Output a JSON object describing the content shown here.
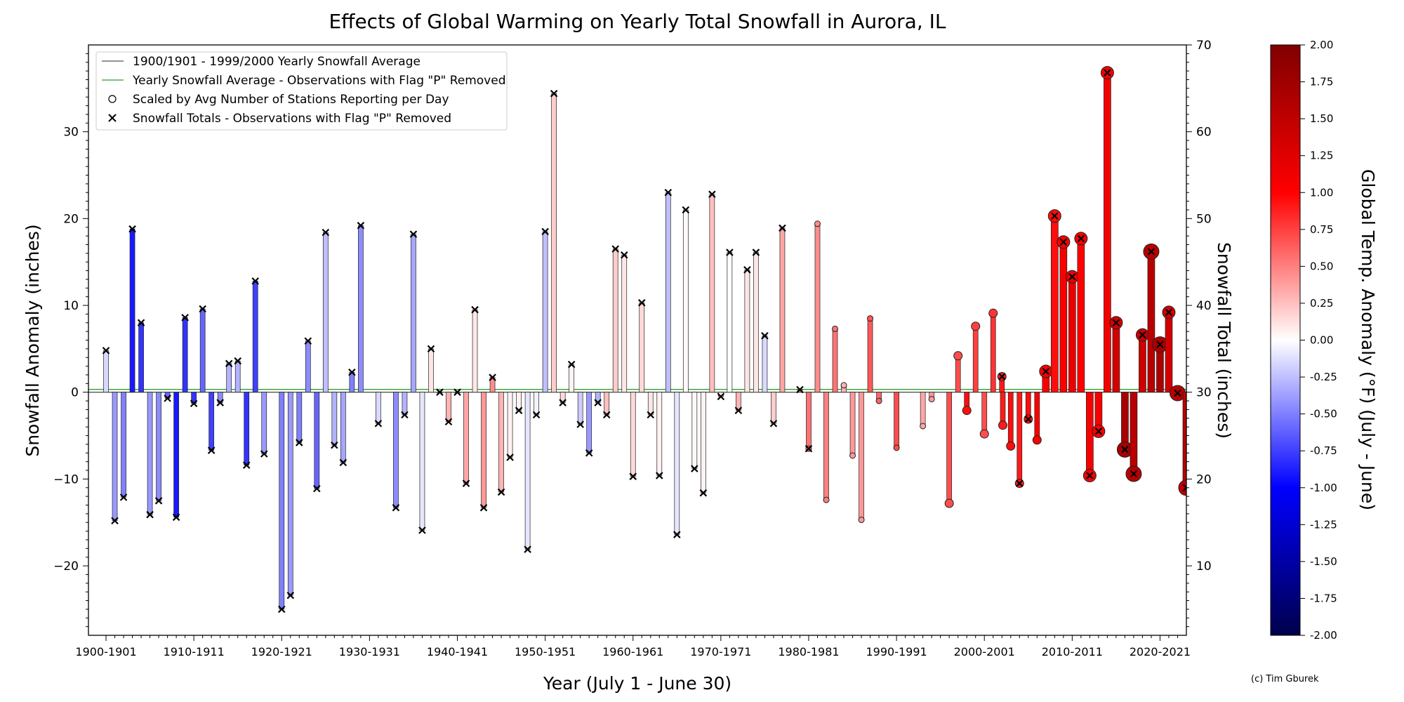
{
  "chart_data": {
    "type": "bar",
    "title": "Effects of Global Warming on Yearly Total Snowfall in Aurora, IL",
    "xlabel": "Year (July 1 - June 30)",
    "ylabel": "Snowfall Anomaly (inches)",
    "ylabel_right": "Snowfall Total (inches)",
    "colorbar_label": "Global Temp. Anomaly (°F) (July - June)",
    "credit": "(c) Tim Gburek",
    "xlim": [
      1898,
      2023
    ],
    "ylim": [
      -28,
      40
    ],
    "ylim_right": [
      2,
      70
    ],
    "baseline_total_inches": 30.0,
    "xticks": [
      {
        "year": 1900,
        "label": "1900-1901"
      },
      {
        "year": 1910,
        "label": "1910-1911"
      },
      {
        "year": 1920,
        "label": "1920-1921"
      },
      {
        "year": 1930,
        "label": "1930-1931"
      },
      {
        "year": 1940,
        "label": "1940-1941"
      },
      {
        "year": 1950,
        "label": "1950-1951"
      },
      {
        "year": 1960,
        "label": "1960-1961"
      },
      {
        "year": 1970,
        "label": "1970-1971"
      },
      {
        "year": 1980,
        "label": "1980-1981"
      },
      {
        "year": 1990,
        "label": "1990-1991"
      },
      {
        "year": 2000,
        "label": "2000-2001"
      },
      {
        "year": 2010,
        "label": "2010-2011"
      },
      {
        "year": 2020,
        "label": "2020-2021"
      }
    ],
    "yticks_left": [
      -20,
      -10,
      0,
      10,
      20,
      30
    ],
    "yticks_right": [
      10,
      20,
      30,
      40,
      50,
      60,
      70
    ],
    "colorbar_ticks": [
      "2.00",
      "1.75",
      "1.50",
      "1.25",
      "1.00",
      "0.75",
      "0.50",
      "0.25",
      "0.00",
      "-0.25",
      "-0.50",
      "-0.75",
      "-1.00",
      "-1.25",
      "-1.50",
      "-1.75",
      "-2.00"
    ],
    "colorbar_range": [
      -2,
      2
    ],
    "legend_placement": "top-left",
    "legend": [
      {
        "label": "1900/1901 - 1999/2000 Yearly Snowfall Average",
        "marker": "line",
        "color": "#555555"
      },
      {
        "label": "Yearly Snowfall Average - Observations with Flag \"P\" Removed",
        "marker": "line",
        "color": "#2ca02c"
      },
      {
        "label": "Scaled by Avg Number of Stations Reporting per Day",
        "marker": "circle",
        "color": "#000000"
      },
      {
        "label": "Snowfall Totals - Observations with Flag \"P\" Removed",
        "marker": "x",
        "color": "#000000"
      }
    ],
    "series": [
      {
        "name": "Snowfall Anomaly",
        "points": [
          {
            "year": 1900,
            "value": 4.8,
            "temp": -0.15,
            "x": true
          },
          {
            "year": 1901,
            "value": -14.8,
            "temp": -0.4,
            "x": true
          },
          {
            "year": 1902,
            "value": -12.1,
            "temp": -0.5,
            "x": true
          },
          {
            "year": 1903,
            "value": 18.8,
            "temp": -0.9,
            "x": true
          },
          {
            "year": 1904,
            "value": 8.0,
            "temp": -0.8,
            "x": true
          },
          {
            "year": 1905,
            "value": -14.1,
            "temp": -0.4,
            "x": true
          },
          {
            "year": 1906,
            "value": -12.5,
            "temp": -0.45,
            "x": true
          },
          {
            "year": 1907,
            "value": -0.7,
            "temp": -0.6,
            "x": true
          },
          {
            "year": 1908,
            "value": -14.4,
            "temp": -0.9,
            "x": true
          },
          {
            "year": 1909,
            "value": 8.6,
            "temp": -0.8,
            "x": true
          },
          {
            "year": 1910,
            "value": -1.3,
            "temp": -0.8,
            "x": true
          },
          {
            "year": 1911,
            "value": 9.6,
            "temp": -0.6,
            "x": true
          },
          {
            "year": 1912,
            "value": -6.7,
            "temp": -0.75,
            "x": true
          },
          {
            "year": 1913,
            "value": -1.2,
            "temp": -0.45,
            "x": true
          },
          {
            "year": 1914,
            "value": 3.3,
            "temp": -0.3,
            "x": true
          },
          {
            "year": 1915,
            "value": 3.6,
            "temp": -0.3,
            "x": true
          },
          {
            "year": 1916,
            "value": -8.4,
            "temp": -0.8,
            "x": true
          },
          {
            "year": 1917,
            "value": 12.8,
            "temp": -0.75,
            "x": true
          },
          {
            "year": 1918,
            "value": -7.1,
            "temp": -0.4,
            "x": true
          },
          {
            "year": 1920,
            "value": -25.0,
            "temp": -0.5,
            "x": true
          },
          {
            "year": 1921,
            "value": -23.4,
            "temp": -0.4,
            "x": true
          },
          {
            "year": 1922,
            "value": -5.8,
            "temp": -0.5,
            "x": true
          },
          {
            "year": 1923,
            "value": 5.9,
            "temp": -0.45,
            "x": true
          },
          {
            "year": 1924,
            "value": -11.1,
            "temp": -0.6,
            "x": true
          },
          {
            "year": 1925,
            "value": 18.4,
            "temp": -0.25,
            "x": true
          },
          {
            "year": 1926,
            "value": -6.1,
            "temp": -0.3,
            "x": true
          },
          {
            "year": 1927,
            "value": -8.1,
            "temp": -0.35,
            "x": true
          },
          {
            "year": 1928,
            "value": 2.3,
            "temp": -0.5,
            "x": true
          },
          {
            "year": 1929,
            "value": 19.2,
            "temp": -0.45,
            "x": true
          },
          {
            "year": 1931,
            "value": -3.6,
            "temp": -0.15,
            "x": true
          },
          {
            "year": 1933,
            "value": -13.3,
            "temp": -0.45,
            "x": true
          },
          {
            "year": 1934,
            "value": -2.6,
            "temp": -0.3,
            "x": true
          },
          {
            "year": 1935,
            "value": 18.2,
            "temp": -0.35,
            "x": true
          },
          {
            "year": 1936,
            "value": -15.9,
            "temp": -0.1,
            "x": true
          },
          {
            "year": 1937,
            "value": 5.0,
            "temp": 0.1,
            "x": true
          },
          {
            "year": 1938,
            "value": 0.0,
            "temp": 0.15,
            "x": true
          },
          {
            "year": 1939,
            "value": -3.4,
            "temp": 0.3,
            "x": true
          },
          {
            "year": 1940,
            "value": 0.0,
            "temp": 0.1,
            "x": true
          },
          {
            "year": 1941,
            "value": -10.5,
            "temp": 0.35,
            "x": true
          },
          {
            "year": 1942,
            "value": 9.5,
            "temp": 0.1,
            "x": true
          },
          {
            "year": 1943,
            "value": -13.3,
            "temp": 0.4,
            "x": true
          },
          {
            "year": 1944,
            "value": 1.7,
            "temp": 0.45,
            "x": true
          },
          {
            "year": 1945,
            "value": -11.5,
            "temp": 0.3,
            "x": true
          },
          {
            "year": 1946,
            "value": -7.5,
            "temp": 0.05,
            "x": true
          },
          {
            "year": 1947,
            "value": -2.1,
            "temp": 0.05,
            "x": true
          },
          {
            "year": 1948,
            "value": -18.1,
            "temp": -0.1,
            "x": true
          },
          {
            "year": 1949,
            "value": -2.6,
            "temp": -0.05,
            "x": true
          },
          {
            "year": 1950,
            "value": 18.5,
            "temp": -0.25,
            "x": true
          },
          {
            "year": 1951,
            "value": 34.4,
            "temp": 0.2,
            "x": true
          },
          {
            "year": 1952,
            "value": -1.2,
            "temp": 0.15,
            "x": true
          },
          {
            "year": 1953,
            "value": 3.2,
            "temp": 0.05,
            "x": true
          },
          {
            "year": 1954,
            "value": -3.7,
            "temp": -0.2,
            "x": true
          },
          {
            "year": 1955,
            "value": -7.0,
            "temp": -0.4,
            "x": true
          },
          {
            "year": 1956,
            "value": -1.2,
            "temp": -0.3,
            "x": true
          },
          {
            "year": 1957,
            "value": -2.6,
            "temp": 0.25,
            "x": true
          },
          {
            "year": 1958,
            "value": 16.5,
            "temp": 0.2,
            "x": true
          },
          {
            "year": 1959,
            "value": 15.8,
            "temp": 0.1,
            "x": true
          },
          {
            "year": 1960,
            "value": -9.7,
            "temp": 0.15,
            "x": true
          },
          {
            "year": 1961,
            "value": 10.3,
            "temp": 0.15,
            "x": true
          },
          {
            "year": 1962,
            "value": -2.6,
            "temp": 0.1,
            "x": true
          },
          {
            "year": 1963,
            "value": -9.6,
            "temp": 0.05,
            "x": true
          },
          {
            "year": 1964,
            "value": 23.0,
            "temp": -0.25,
            "x": true
          },
          {
            "year": 1965,
            "value": -16.4,
            "temp": -0.1,
            "x": true
          },
          {
            "year": 1966,
            "value": 21.0,
            "temp": 0.02,
            "x": true
          },
          {
            "year": 1967,
            "value": -8.8,
            "temp": 0.02,
            "x": true
          },
          {
            "year": 1968,
            "value": -11.6,
            "temp": 0.05,
            "x": true
          },
          {
            "year": 1969,
            "value": 22.8,
            "temp": 0.25,
            "x": true
          },
          {
            "year": 1970,
            "value": -0.5,
            "temp": 0.1,
            "x": true
          },
          {
            "year": 1971,
            "value": 16.1,
            "temp": 0.0,
            "x": true
          },
          {
            "year": 1972,
            "value": -2.1,
            "temp": 0.3,
            "x": true
          },
          {
            "year": 1973,
            "value": 14.1,
            "temp": 0.1,
            "x": true
          },
          {
            "year": 1974,
            "value": 16.1,
            "temp": 0.1,
            "x": true
          },
          {
            "year": 1975,
            "value": 6.5,
            "temp": -0.15,
            "x": true
          },
          {
            "year": 1976,
            "value": -3.6,
            "temp": 0.2,
            "x": true
          },
          {
            "year": 1977,
            "value": 18.9,
            "temp": 0.35,
            "x": true
          },
          {
            "year": 1979,
            "value": 0.3,
            "temp": 0.45,
            "x": true
          },
          {
            "year": 1980,
            "value": -6.5,
            "temp": 0.55,
            "x": true
          },
          {
            "year": 1981,
            "value": 19.4,
            "temp": 0.45,
            "x": false
          },
          {
            "year": 1982,
            "value": -12.4,
            "temp": 0.5,
            "x": false
          },
          {
            "year": 1983,
            "value": 7.3,
            "temp": 0.55,
            "x": false
          },
          {
            "year": 1984,
            "value": 0.8,
            "temp": 0.3,
            "x": false
          },
          {
            "year": 1985,
            "value": -7.3,
            "temp": 0.4,
            "x": false
          },
          {
            "year": 1986,
            "value": -14.7,
            "temp": 0.4,
            "x": false
          },
          {
            "year": 1987,
            "value": 8.5,
            "temp": 0.65,
            "x": false
          },
          {
            "year": 1988,
            "value": -1.0,
            "temp": 0.6,
            "x": false
          },
          {
            "year": 1990,
            "value": -6.4,
            "temp": 0.7,
            "x": false
          },
          {
            "year": 1993,
            "value": -3.9,
            "temp": 0.35,
            "x": false
          },
          {
            "year": 1994,
            "value": -0.8,
            "temp": 0.4,
            "x": false
          },
          {
            "year": 1996,
            "value": -12.8,
            "temp": 0.7,
            "x": false
          },
          {
            "year": 1997,
            "value": 4.2,
            "temp": 0.7,
            "x": false
          },
          {
            "year": 1998,
            "value": -2.1,
            "temp": 0.95,
            "x": false
          },
          {
            "year": 1999,
            "value": 7.6,
            "temp": 0.75,
            "x": false
          },
          {
            "year": 2000,
            "value": -4.8,
            "temp": 0.7,
            "x": false
          },
          {
            "year": 2001,
            "value": 9.1,
            "temp": 0.8,
            "x": false
          },
          {
            "year": 2002,
            "value": 1.8,
            "temp": 0.9,
            "x": true
          },
          {
            "year": 2002.1,
            "value": -3.8,
            "temp": 0.9,
            "x": false
          },
          {
            "year": 2003,
            "value": -6.2,
            "temp": 0.95,
            "x": false
          },
          {
            "year": 2004,
            "value": -10.5,
            "temp": 0.9,
            "x": true
          },
          {
            "year": 2005,
            "value": -3.1,
            "temp": 0.95,
            "x": true
          },
          {
            "year": 2006,
            "value": -5.5,
            "temp": 1.0,
            "x": false
          },
          {
            "year": 2007,
            "value": 2.4,
            "temp": 1.05,
            "x": true
          },
          {
            "year": 2008,
            "value": 20.3,
            "temp": 0.95,
            "x": true
          },
          {
            "year": 2009,
            "value": 17.3,
            "temp": 1.05,
            "x": true
          },
          {
            "year": 2010,
            "value": 13.3,
            "temp": 1.15,
            "x": true
          },
          {
            "year": 2011,
            "value": 17.7,
            "temp": 1.0,
            "x": true
          },
          {
            "year": 2012,
            "value": -9.6,
            "temp": 1.05,
            "x": true
          },
          {
            "year": 2013,
            "value": -4.5,
            "temp": 1.05,
            "x": true
          },
          {
            "year": 2014,
            "value": 36.8,
            "temp": 1.1,
            "x": true
          },
          {
            "year": 2015,
            "value": 8.0,
            "temp": 1.35,
            "x": true
          },
          {
            "year": 2016,
            "value": -6.6,
            "temp": 1.7,
            "x": true
          },
          {
            "year": 2017,
            "value": -9.4,
            "temp": 1.55,
            "x": true
          },
          {
            "year": 2018,
            "value": 6.6,
            "temp": 1.4,
            "x": true
          },
          {
            "year": 2019,
            "value": 16.2,
            "temp": 1.55,
            "x": true
          },
          {
            "year": 2020,
            "value": 5.5,
            "temp": 1.65,
            "x": true
          },
          {
            "year": 2021,
            "value": 9.2,
            "temp": 1.35,
            "x": true
          },
          {
            "year": 2022,
            "value": -0.1,
            "temp": 1.55,
            "x": true
          },
          {
            "year": 2023,
            "value": -11.0,
            "temp": 1.5,
            "x": true
          }
        ]
      }
    ]
  }
}
